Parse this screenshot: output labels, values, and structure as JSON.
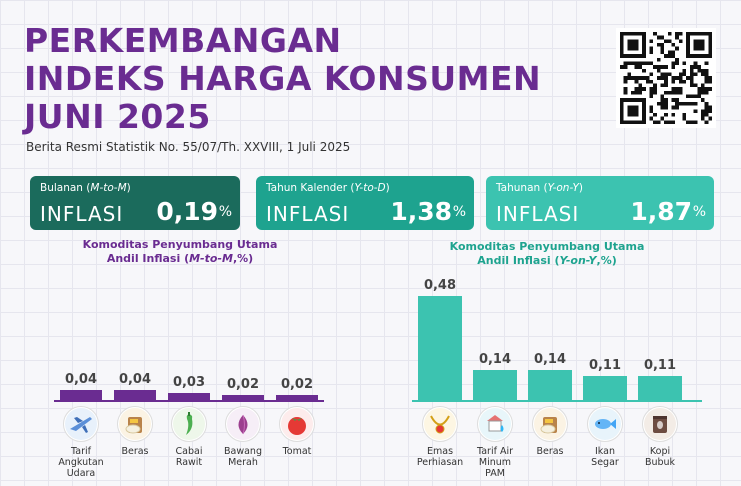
{
  "header": {
    "title_lines": [
      "PERKEMBANGAN",
      "INDEKS HARGA KONSUMEN",
      "JUNI 2025"
    ],
    "subtitle": "Berita Resmi Statistik No. 55/07/Th. XXVIII, 1 Juli 2025"
  },
  "cards": [
    {
      "caption_prefix": "Bulanan (",
      "caption_em": "M-to-M",
      "caption_suffix": ")",
      "label": "INFLASI",
      "value": "0,19",
      "unit": "%"
    },
    {
      "caption_prefix": "Tahun Kalender (",
      "caption_em": "Y-to-D",
      "caption_suffix": ")",
      "label": "INFLASI",
      "value": "1,38",
      "unit": "%"
    },
    {
      "caption_prefix": "Tahunan (",
      "caption_em": "Y-on-Y",
      "caption_suffix": ")",
      "label": "INFLASI",
      "value": "1,87",
      "unit": "%"
    }
  ],
  "colors": {
    "purple": "#6a2c91",
    "teal_dark": "#1b6b5c",
    "teal_mid": "#1ea38f",
    "teal_light": "#3cc3b0"
  },
  "chart_data": [
    {
      "type": "bar",
      "title_line1": "Komoditas Penyumbang Utama",
      "title_line2_prefix": "Andil Inflasi (",
      "title_line2_em": "M-to-M",
      "title_line2_suffix": ",%)",
      "categories": [
        "Tarif Angkutan Udara",
        "Beras",
        "Cabai Rawit",
        "Bawang Merah",
        "Tomat"
      ],
      "category_lines": [
        [
          "Tarif",
          "Angkutan",
          "Udara"
        ],
        [
          "Beras"
        ],
        [
          "Cabai",
          "Rawit"
        ],
        [
          "Bawang",
          "Merah"
        ],
        [
          "Tomat"
        ]
      ],
      "values": [
        0.04,
        0.04,
        0.03,
        0.02,
        0.02
      ],
      "value_labels": [
        "0,04",
        "0,04",
        "0,03",
        "0,02",
        "0,02"
      ],
      "icons": [
        "airplane-icon",
        "rice-icon",
        "chili-icon",
        "shallot-icon",
        "tomato-icon"
      ],
      "color": "#6a2c91"
    },
    {
      "type": "bar",
      "title_line1": "Komoditas Penyumbang Utama",
      "title_line2_prefix": "Andil Inflasi (",
      "title_line2_em": "Y-on-Y",
      "title_line2_suffix": ",%)",
      "categories": [
        "Emas Perhiasan",
        "Tarif Air Minum PAM",
        "Beras",
        "Ikan Segar",
        "Kopi Bubuk"
      ],
      "category_lines": [
        [
          "Emas",
          "Perhiasan"
        ],
        [
          "Tarif Air",
          "Minum",
          "PAM"
        ],
        [
          "Beras"
        ],
        [
          "Ikan",
          "Segar"
        ],
        [
          "Kopi",
          "Bubuk"
        ]
      ],
      "values": [
        0.48,
        0.14,
        0.14,
        0.11,
        0.11
      ],
      "value_labels": [
        "0,48",
        "0,14",
        "0,14",
        "0,11",
        "0,11"
      ],
      "icons": [
        "jewelry-icon",
        "water-tap-icon",
        "rice-icon",
        "fish-icon",
        "coffee-icon"
      ],
      "color": "#3cc3b0"
    }
  ]
}
